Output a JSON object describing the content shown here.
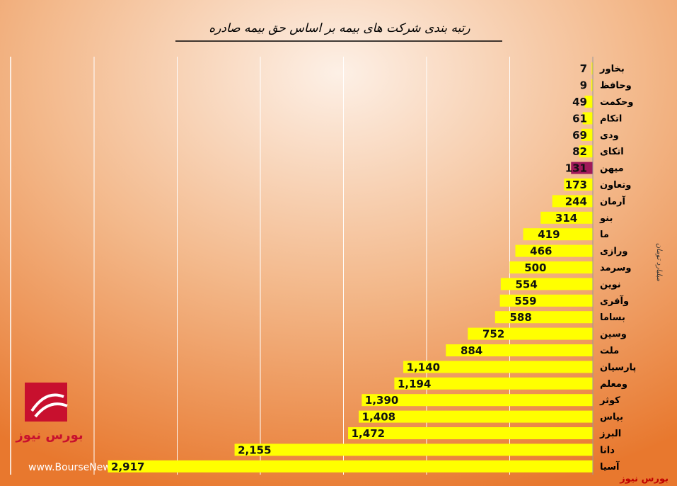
{
  "chart_data": {
    "type": "hbar",
    "title": "رتبه بندی شرکت های بیمه بر اساس حق بیمه صادره",
    "axis_label": "میلیارد تومان",
    "categories": [
      "بخاور",
      "وحافظ",
      "وحکمت",
      "اتکام",
      "ودی",
      "اتکای",
      "میهن",
      "وتعاون",
      "آرمان",
      "بنو",
      "ما",
      "ورازی",
      "وسرمد",
      "نوین",
      "وآفری",
      "بساما",
      "وسین",
      "ملت",
      "پارسیان",
      "ومعلم",
      "کوثر",
      "بپاس",
      "البرز",
      "دانا",
      "آسیا"
    ],
    "values": [
      7,
      9,
      49,
      61,
      69,
      82,
      131,
      173,
      244,
      314,
      419,
      466,
      500,
      554,
      559,
      588,
      752,
      884,
      1140,
      1194,
      1390,
      1408,
      1472,
      2155,
      2917
    ],
    "value_labels": [
      "7",
      "9",
      "49",
      "61",
      "69",
      "82",
      "131",
      "173",
      "244",
      "314",
      "419",
      "466",
      "500",
      "554",
      "559",
      "588",
      "752",
      "884",
      "1,140",
      "1,194",
      "1,390",
      "1,408",
      "1,472",
      "2,155",
      "2,917"
    ],
    "colors": [
      "#ffff00",
      "#ffff00",
      "#ffff00",
      "#ffff00",
      "#ffff00",
      "#ffff00",
      "#a0195a",
      "#ffff00",
      "#ffff00",
      "#ffff00",
      "#ffff00",
      "#ffff00",
      "#ffff00",
      "#ffff00",
      "#ffff00",
      "#ffff00",
      "#ffff00",
      "#ffff00",
      "#ffff00",
      "#ffff00",
      "#ffff00",
      "#ffff00",
      "#ffff00",
      "#ffff00",
      "#ffff00"
    ],
    "xlim": [
      0,
      3000
    ],
    "xticks": [
      0,
      500,
      1000,
      1500,
      2000,
      2500,
      3000
    ],
    "grid": true,
    "logo_text": "بورس نیوز",
    "website": "www.BourseNews.ir",
    "source": "بورس نیوز"
  }
}
